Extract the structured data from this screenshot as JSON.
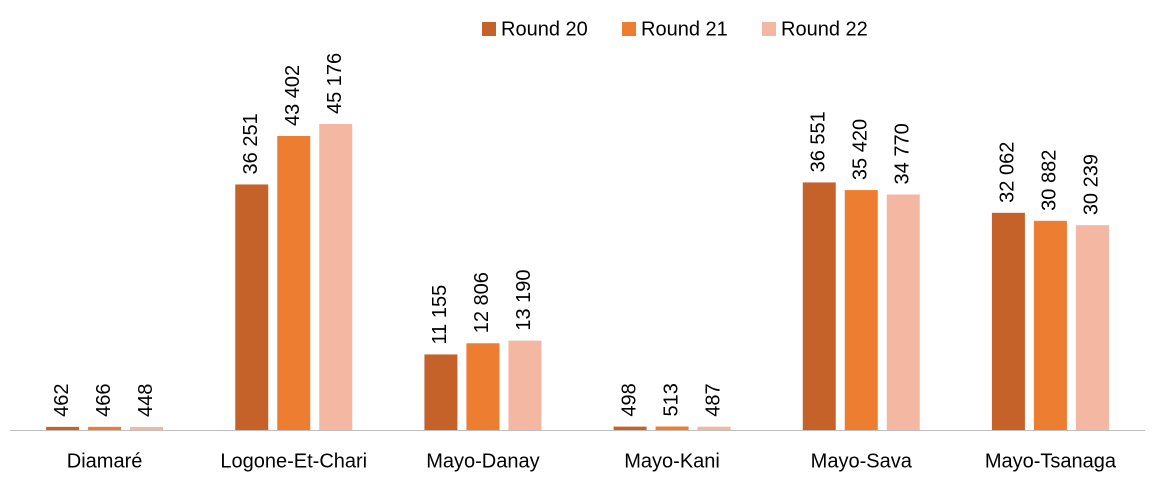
{
  "chart_data": {
    "type": "bar",
    "categories": [
      "Diamaré",
      "Logone-Et-Chari",
      "Mayo-Danay",
      "Mayo-Kani",
      "Mayo-Sava",
      "Mayo-Tsanaga"
    ],
    "series": [
      {
        "name": "Round 20",
        "color": "#c5622a",
        "values": [
          462,
          36251,
          11155,
          498,
          36551,
          32062
        ],
        "value_labels": [
          "462",
          "36 251",
          "11 155",
          "498",
          "36 551",
          "32 062"
        ]
      },
      {
        "name": "Round 21",
        "color": "#ed7d31",
        "values": [
          466,
          43402,
          12806,
          513,
          35420,
          30882
        ],
        "value_labels": [
          "466",
          "43 402",
          "12 806",
          "513",
          "35 420",
          "30 882"
        ]
      },
      {
        "name": "Round 22",
        "color": "#f4b7a1",
        "values": [
          448,
          45176,
          13190,
          487,
          34770,
          30239
        ],
        "value_labels": [
          "448",
          "45 176",
          "13 190",
          "487",
          "34 770",
          "30 239"
        ]
      }
    ],
    "legend": "top"
  }
}
